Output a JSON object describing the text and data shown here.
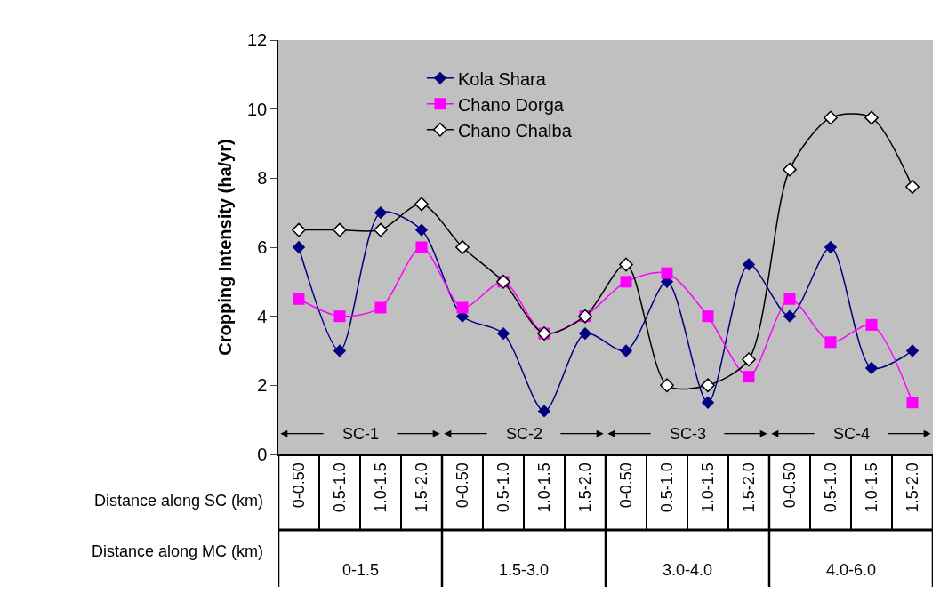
{
  "chart_data": {
    "type": "line",
    "ylabel": "Cropping Intensity (ha/yr)",
    "categories": [
      "0-0.50",
      "0.5-1.0",
      "1.0-1.5",
      "1.5-2.0",
      "0-0.50",
      "0.5-1.0",
      "1.0-1.5",
      "1.5-2.0",
      "0-0.50",
      "0.5-1.0",
      "1.0-1.5",
      "1.5-2.0",
      "0-0.50",
      "0.5-1.0",
      "1.0-1.5",
      "1.5-2.0"
    ],
    "series": [
      {
        "name": "Kola Shara",
        "color": "#000080",
        "marker": "diamond",
        "values": [
          6,
          3,
          7,
          6.5,
          4,
          3.5,
          1.25,
          3.5,
          3,
          5,
          1.5,
          5.5,
          4,
          6,
          2.5,
          3
        ]
      },
      {
        "name": "Chano Dorga",
        "color": "#ff00ff",
        "marker": "square",
        "values": [
          4.5,
          4,
          4.25,
          6,
          4.25,
          5,
          3.5,
          4,
          5,
          5.25,
          4,
          2.25,
          4.5,
          3.25,
          3.75,
          1.5
        ]
      },
      {
        "name": "Chano Chalba",
        "color": "#000000",
        "marker": "diamond",
        "values": [
          6.5,
          6.5,
          6.5,
          7.25,
          6,
          5,
          3.5,
          4,
          5.5,
          2,
          2,
          2.75,
          8.25,
          9.75,
          9.75,
          7.75
        ]
      }
    ],
    "annotations": [
      "Distance along SC (km)",
      "Distance along MC (km)",
      "SC-1",
      "SC-2",
      "SC-3",
      "SC-4",
      "0-1.5",
      "1.5-3.0",
      "3.0-4.0",
      "4.0-6.0"
    ],
    "ylim": [
      0,
      12
    ],
    "yticks": [
      0,
      2,
      4,
      6,
      8,
      10,
      12
    ],
    "grid": false,
    "legend": "top",
    "line_style": "solid"
  }
}
